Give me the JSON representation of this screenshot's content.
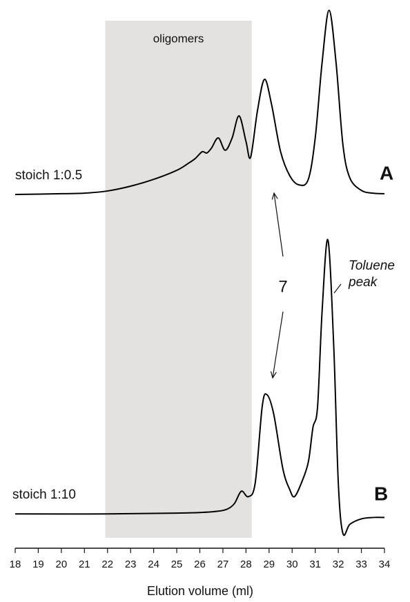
{
  "chart_data": [
    {
      "type": "line",
      "series_label": "stoich 1:0.5",
      "panel_label": "A",
      "shaded_region": {
        "label": "oligomers",
        "x": [
          21.9,
          28.25
        ]
      },
      "annotation": "7",
      "xlim": [
        18,
        34
      ],
      "ylim": [
        0,
        100
      ],
      "color": "#000000",
      "x": [
        18,
        20,
        21,
        22,
        23,
        24,
        25,
        25.5,
        25.8,
        26.1,
        26.3,
        26.5,
        26.8,
        27.1,
        27.4,
        27.7,
        28.0,
        28.2,
        28.5,
        28.8,
        29.1,
        29.5,
        29.9,
        30.3,
        30.7,
        31.0,
        31.3,
        31.6,
        31.9,
        32.2,
        32.5,
        33.0,
        33.5,
        34
      ],
      "values": [
        0,
        0.4,
        0.7,
        1.9,
        4.5,
        8.2,
        13.1,
        16.9,
        19.5,
        23.2,
        22.5,
        25.1,
        30.7,
        24,
        30.7,
        42.7,
        28.8,
        20.2,
        45.7,
        62.5,
        49.4,
        23.2,
        10.1,
        5.2,
        8.2,
        30.7,
        71.9,
        100,
        71.9,
        27,
        9,
        2.2,
        0.7,
        0.4
      ]
    },
    {
      "type": "line",
      "series_label": "stoich 1:10",
      "panel_label": "B",
      "annotation_lines": [
        "Toluene",
        "peak"
      ],
      "xlabel": "Elution volume (ml)",
      "xlim": [
        18,
        34
      ],
      "ylim": [
        -10,
        100
      ],
      "color": "#000000",
      "xticks": [
        18,
        19,
        20,
        21,
        22,
        23,
        24,
        25,
        26,
        27,
        28,
        29,
        30,
        31,
        32,
        33,
        34
      ],
      "x": [
        18,
        22,
        25,
        26,
        26.8,
        27.2,
        27.5,
        27.8,
        28.1,
        28.4,
        28.7,
        28.9,
        29.2,
        29.6,
        29.9,
        30.1,
        30.4,
        30.7,
        30.9,
        31.1,
        31.3,
        31.55,
        31.8,
        32.0,
        32.2,
        32.5,
        33.0,
        33.5,
        34
      ],
      "values": [
        0,
        0,
        0.3,
        0.5,
        1,
        1.8,
        3.8,
        8.3,
        6.3,
        11.3,
        39,
        43.6,
        36.5,
        16.4,
        8.8,
        6.3,
        11.3,
        18.9,
        31.5,
        39,
        74.3,
        100,
        61.7,
        11.3,
        -7.1,
        -3.8,
        -1.8,
        -1.3,
        -1.3
      ]
    }
  ]
}
